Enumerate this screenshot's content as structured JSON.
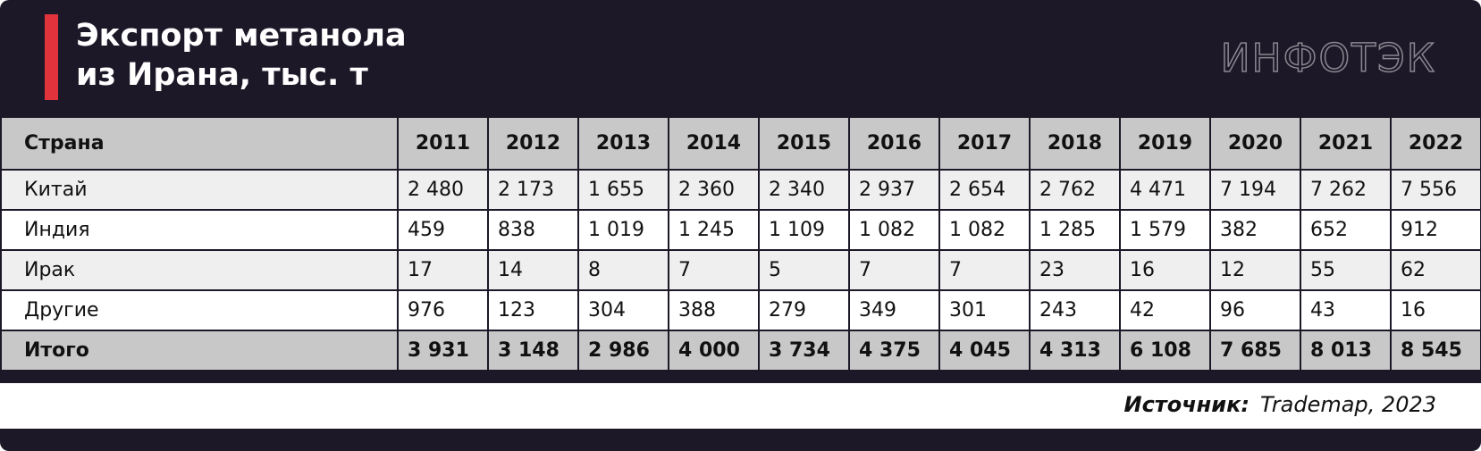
{
  "header": {
    "title_lines": [
      "Экспорт метанола",
      "из Ирана, тыс. т"
    ],
    "logo": "ИНФОТЭК"
  },
  "table": {
    "columns": [
      "Страна",
      "2011",
      "2012",
      "2013",
      "2014",
      "2015",
      "2016",
      "2017",
      "2018",
      "2019",
      "2020",
      "2021",
      "2022"
    ],
    "rows": [
      [
        "Китай",
        "2 480",
        "2 173",
        "1 655",
        "2 360",
        "2 340",
        "2 937",
        "2 654",
        "2 762",
        "4 471",
        "7 194",
        "7 262",
        "7 556"
      ],
      [
        "Индия",
        "459",
        "838",
        "1 019",
        "1 245",
        "1 109",
        "1 082",
        "1 082",
        "1 285",
        "1 579",
        "382",
        "652",
        "912"
      ],
      [
        "Ирак",
        "17",
        "14",
        "8",
        "7",
        "5",
        "7",
        "7",
        "23",
        "16",
        "12",
        "55",
        "62"
      ],
      [
        "Другие",
        "976",
        "123",
        "304",
        "388",
        "279",
        "349",
        "301",
        "243",
        "42",
        "96",
        "43",
        "16"
      ]
    ],
    "total": [
      "Итого",
      "3 931",
      "3 148",
      "2 986",
      "4 000",
      "3 734",
      "4 375",
      "4 045",
      "4 313",
      "6 108",
      "7 685",
      "8 013",
      "8 545"
    ]
  },
  "footer": {
    "source_label": "Источник:",
    "source_text": "Trademap, 2023"
  }
}
